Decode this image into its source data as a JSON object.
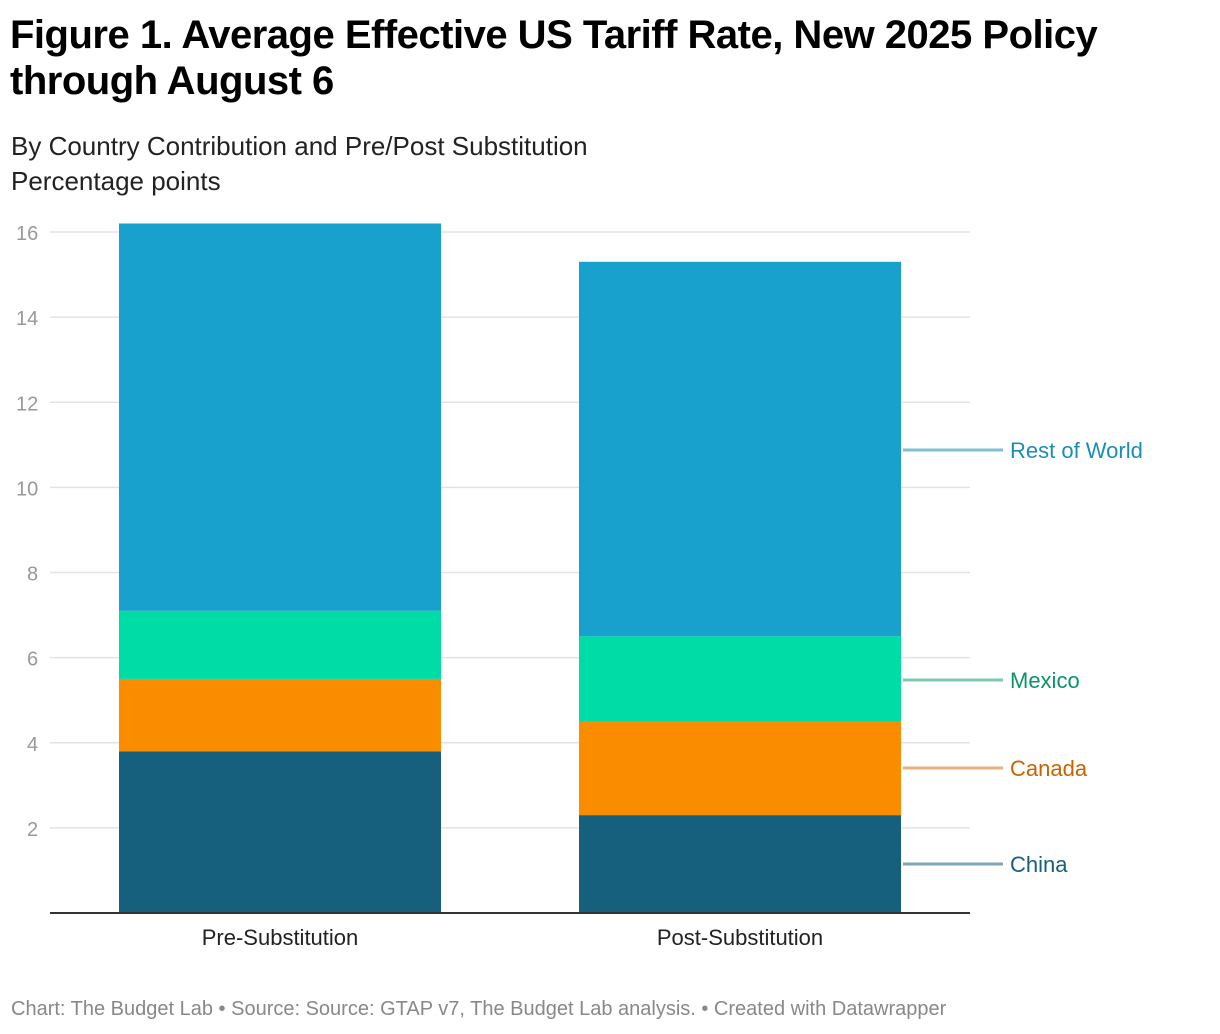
{
  "title": "Figure 1. Average Effective US Tariff Rate, New 2025 Policy through August 6",
  "subtitle": "By Country Contribution and Pre/Post Substitution",
  "unit_label": "Percentage points",
  "footer": "Chart: The Budget Lab • Source: Source: GTAP v7, The Budget Lab analysis. • Created with Datawrapper",
  "chart_data": {
    "type": "bar",
    "stacked": true,
    "title": "Figure 1. Average Effective US Tariff Rate, New 2025 Policy through August 6",
    "subtitle": "By Country Contribution and Pre/Post Substitution",
    "ylabel": "Percentage points",
    "categories": [
      "Pre-Substitution",
      "Post-Substitution"
    ],
    "ylim": [
      0,
      16
    ],
    "yticks": [
      2,
      4,
      6,
      8,
      10,
      12,
      14,
      16
    ],
    "grid": true,
    "legend": "direct labels right",
    "series": [
      {
        "name": "China",
        "values": [
          3.8,
          2.3
        ],
        "color": "#17607d",
        "label_color": "#17607d",
        "line_color": "#7aa6b6"
      },
      {
        "name": "Canada",
        "values": [
          1.7,
          2.2
        ],
        "color": "#fa8c00",
        "label_color": "#c96300",
        "line_color": "#e8b07a"
      },
      {
        "name": "Mexico",
        "values": [
          1.6,
          2.0
        ],
        "color": "#00dca6",
        "label_color": "#0b9566",
        "line_color": "#7cc9ae"
      },
      {
        "name": "Rest of World",
        "values": [
          9.1,
          8.8
        ],
        "color": "#19a1cd",
        "label_color": "#1b8db7",
        "line_color": "#7fbfd6"
      }
    ]
  }
}
